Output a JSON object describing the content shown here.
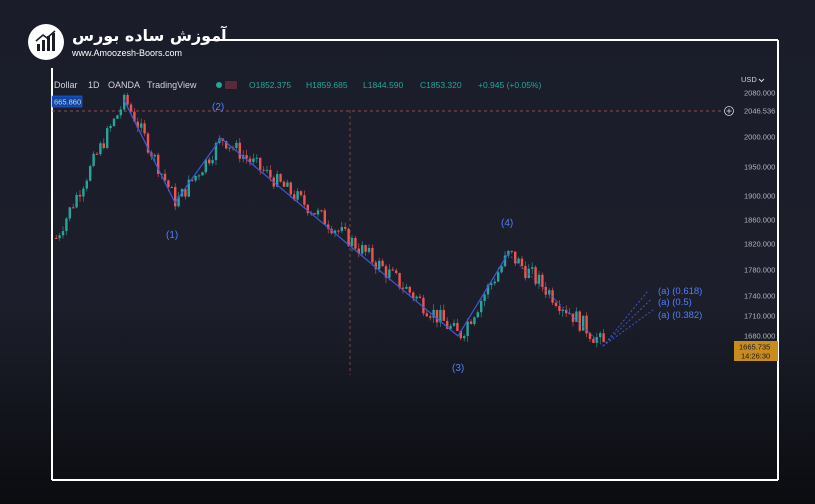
{
  "logo": {
    "title": "آموزش ساده بورس",
    "url": "www.Amoozesh-Boors.com",
    "icon": "bull-chart-logo-icon"
  },
  "header": {
    "symbol": "Dollar",
    "interval": "1D",
    "broker": "OANDA",
    "platform": "TradingView",
    "open": "O1852.375",
    "high": "H1859.685",
    "low": "L1844.590",
    "close": "C1853.320",
    "change": "+0.945 (+0.05%)"
  },
  "currency": "USD",
  "crosshair_left_label": "665.860",
  "crosshair_right_label": "2046.536",
  "price_label": {
    "value": "1665.735",
    "countdown": "14:26:30"
  },
  "colors": {
    "up": "#26a69a",
    "down": "#ef5350",
    "wave": "#3d5bd9",
    "wave_text": "#4f7fff",
    "axis_text": "#b2b5be",
    "price_tag": "#c78b1f"
  },
  "chart_data": {
    "type": "candlestick",
    "y_axis": {
      "ticks": [
        2080.0,
        2046.536,
        2000.0,
        1950.0,
        1900.0,
        1860.0,
        1820.0,
        1780.0,
        1740.0,
        1710.0,
        1680.0
      ],
      "tick_labels": [
        "2080.000",
        "2046.536",
        "2000.000",
        "1950.000",
        "1900.000",
        "1860.000",
        "1820.000",
        "1780.000",
        "1740.000",
        "1710.000",
        "1680.000"
      ]
    },
    "elliott_wave": [
      {
        "label": "(1)",
        "price": 1889
      },
      {
        "label": "(2)",
        "price": 1998
      },
      {
        "label": "(3)",
        "price": 1680
      },
      {
        "label": "(4)",
        "price": 1805
      }
    ],
    "wave_start": 2067,
    "current_price": 1665.735,
    "projections": [
      {
        "label": "(a) (0.618)",
        "price": 1748
      },
      {
        "label": "(a) (0.5)",
        "price": 1735
      },
      {
        "label": "(a) (0.382)",
        "price": 1720
      }
    ]
  }
}
